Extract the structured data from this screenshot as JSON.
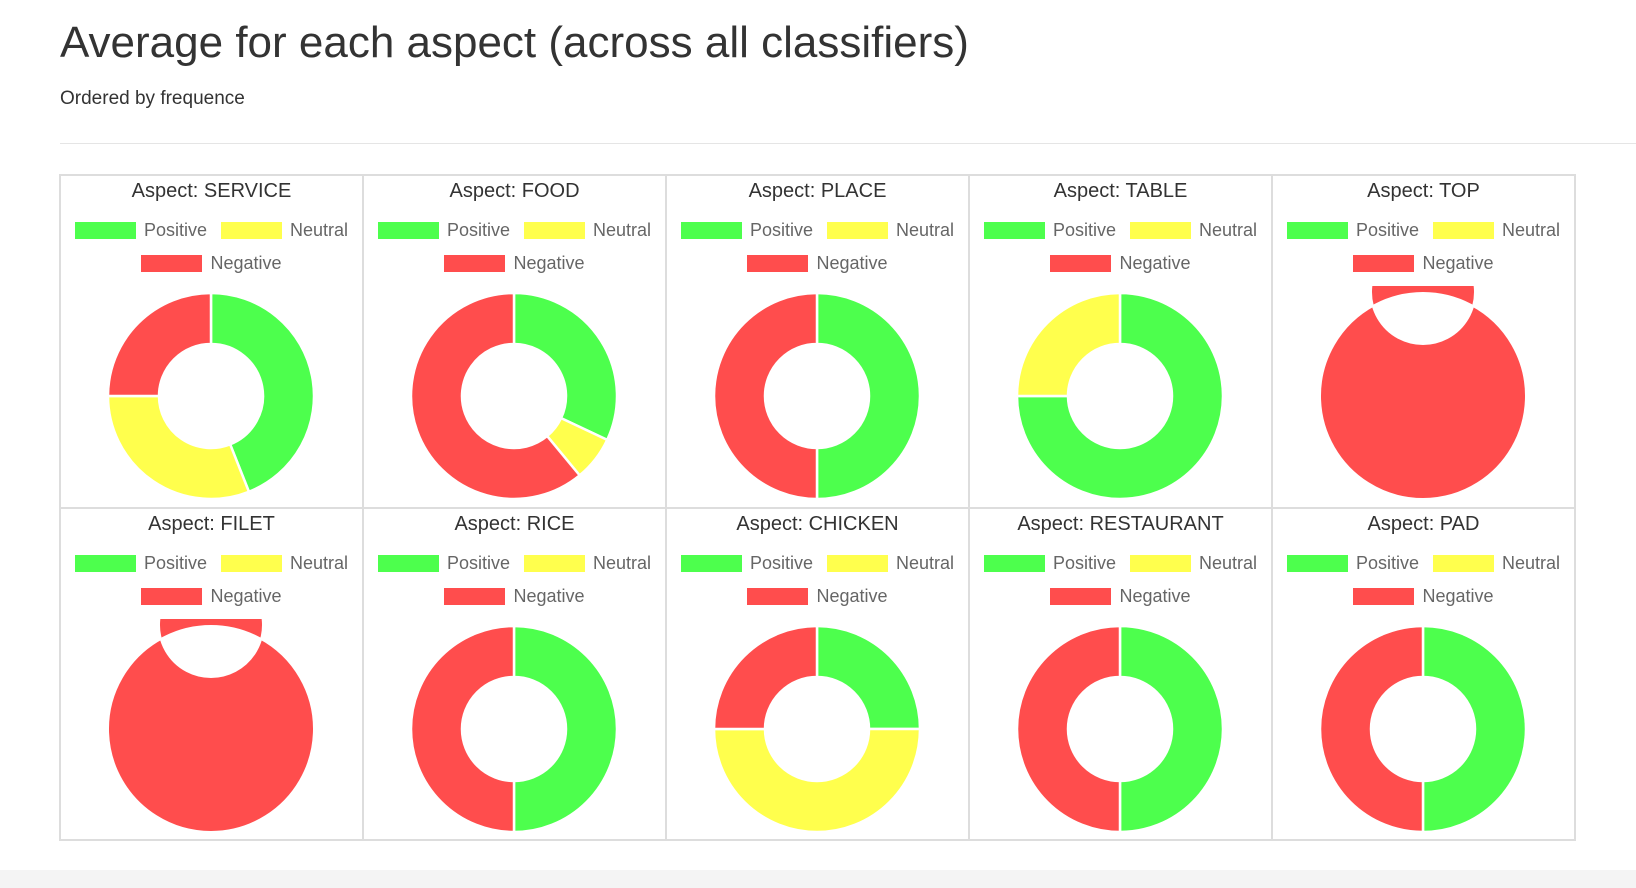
{
  "page": {
    "title": "Average for each aspect (across all classifiers)",
    "subtitle": "Ordered by frequence"
  },
  "colors": {
    "positive": "#4dff4d",
    "neutral": "#ffff4d",
    "negative": "#ff4d4d"
  },
  "legend": [
    "Positive",
    "Neutral",
    "Negative"
  ],
  "chart_data": [
    {
      "type": "pie",
      "title": "Aspect: SERVICE",
      "categories": [
        "Positive",
        "Neutral",
        "Negative"
      ],
      "values": [
        0.44,
        0.31,
        0.25
      ]
    },
    {
      "type": "pie",
      "title": "Aspect: FOOD",
      "categories": [
        "Positive",
        "Neutral",
        "Negative"
      ],
      "values": [
        0.32,
        0.07,
        0.61
      ]
    },
    {
      "type": "pie",
      "title": "Aspect: PLACE",
      "categories": [
        "Positive",
        "Neutral",
        "Negative"
      ],
      "values": [
        0.5,
        0.0,
        0.5
      ]
    },
    {
      "type": "pie",
      "title": "Aspect: TABLE",
      "categories": [
        "Positive",
        "Neutral",
        "Negative"
      ],
      "values": [
        0.75,
        0.25,
        0.0
      ]
    },
    {
      "type": "pie",
      "title": "Aspect: TOP",
      "categories": [
        "Positive",
        "Neutral",
        "Negative"
      ],
      "values": [
        0.0,
        0.0,
        1.0
      ]
    },
    {
      "type": "pie",
      "title": "Aspect: FILET",
      "categories": [
        "Positive",
        "Neutral",
        "Negative"
      ],
      "values": [
        0.0,
        0.0,
        1.0
      ]
    },
    {
      "type": "pie",
      "title": "Aspect: RICE",
      "categories": [
        "Positive",
        "Neutral",
        "Negative"
      ],
      "values": [
        0.5,
        0.0,
        0.5
      ]
    },
    {
      "type": "pie",
      "title": "Aspect: CHICKEN",
      "categories": [
        "Positive",
        "Neutral",
        "Negative"
      ],
      "values": [
        0.25,
        0.5,
        0.25
      ]
    },
    {
      "type": "pie",
      "title": "Aspect: RESTAURANT",
      "categories": [
        "Positive",
        "Neutral",
        "Negative"
      ],
      "values": [
        0.5,
        0.0,
        0.5
      ]
    },
    {
      "type": "pie",
      "title": "Aspect: PAD",
      "categories": [
        "Positive",
        "Neutral",
        "Negative"
      ],
      "values": [
        0.5,
        0.0,
        0.5
      ]
    }
  ]
}
